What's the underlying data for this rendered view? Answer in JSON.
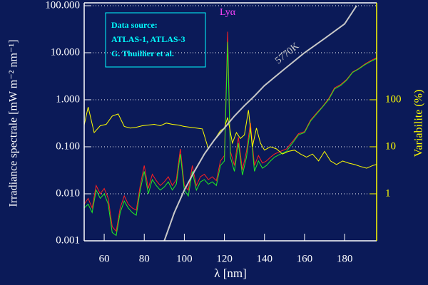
{
  "chart_data": {
    "type": "line",
    "xlabel": "λ [nm]",
    "ylabel": "Irradiance spectrale [mW m⁻² nm⁻¹]",
    "y2label": "Variabilite (%)",
    "xlim": [
      50,
      196
    ],
    "ylim": [
      0.001,
      100
    ],
    "y2lim": [
      0.1,
      10000
    ],
    "yscale": "log",
    "y2scale": "log",
    "xticks": [
      60,
      80,
      100,
      120,
      140,
      160,
      180
    ],
    "yticks": [
      {
        "value": 0.001,
        "label": "0.001"
      },
      {
        "value": 0.01,
        "label": "0.010"
      },
      {
        "value": 0.1,
        "label": "0.100"
      },
      {
        "value": 1,
        "label": "1.000"
      },
      {
        "value": 10,
        "label": "10.000"
      },
      {
        "value": 100,
        "label": "100.000"
      }
    ],
    "y2ticks": [
      1,
      10,
      100
    ],
    "grid": true,
    "annotations": {
      "line_peak": "Lyα",
      "source": [
        "Data source:",
        "ATLAS-1, ATLAS-3",
        "G. Thuillier et al."
      ]
    },
    "series": [
      {
        "color": "#ff2020",
        "x": [
          50,
          52,
          54,
          56,
          58,
          60,
          62,
          64,
          66,
          68,
          70,
          72,
          74,
          76,
          78,
          80,
          82,
          84,
          86,
          88,
          90,
          92,
          94,
          96,
          98,
          100,
          102,
          104,
          106,
          108,
          110,
          112,
          114,
          116,
          118,
          120,
          121.6,
          123,
          125,
          127,
          129,
          131,
          133,
          135,
          137,
          139,
          141,
          143,
          145,
          148,
          151,
          154,
          157,
          160,
          163,
          166,
          169,
          172,
          175,
          178,
          181,
          184,
          187,
          190,
          193,
          196
        ],
        "values": [
          0.006,
          0.008,
          0.005,
          0.015,
          0.01,
          0.013,
          0.008,
          0.002,
          0.0016,
          0.005,
          0.009,
          0.006,
          0.005,
          0.0045,
          0.015,
          0.04,
          0.013,
          0.026,
          0.019,
          0.015,
          0.018,
          0.023,
          0.015,
          0.02,
          0.09,
          0.015,
          0.012,
          0.04,
          0.015,
          0.023,
          0.026,
          0.02,
          0.023,
          0.019,
          0.05,
          0.065,
          28,
          0.08,
          0.04,
          0.16,
          0.032,
          0.08,
          0.32,
          0.04,
          0.065,
          0.045,
          0.05,
          0.06,
          0.07,
          0.08,
          0.09,
          0.13,
          0.19,
          0.21,
          0.37,
          0.52,
          0.72,
          1.05,
          1.8,
          2.1,
          2.7,
          3.9,
          4.6,
          5.7,
          6.8,
          7.8
        ]
      },
      {
        "color": "#22ee22",
        "x": [
          50,
          52,
          54,
          56,
          58,
          60,
          62,
          64,
          66,
          68,
          70,
          72,
          74,
          76,
          78,
          80,
          82,
          84,
          86,
          88,
          90,
          92,
          94,
          96,
          98,
          100,
          102,
          104,
          106,
          108,
          110,
          112,
          114,
          116,
          118,
          120,
          121.6,
          123,
          125,
          127,
          129,
          131,
          133,
          135,
          137,
          139,
          141,
          143,
          145,
          148,
          151,
          154,
          157,
          160,
          163,
          166,
          169,
          172,
          175,
          178,
          181,
          184,
          187,
          190,
          193,
          196
        ],
        "values": [
          0.005,
          0.006,
          0.004,
          0.012,
          0.008,
          0.01,
          0.006,
          0.0015,
          0.0013,
          0.004,
          0.007,
          0.005,
          0.004,
          0.0035,
          0.012,
          0.03,
          0.01,
          0.02,
          0.015,
          0.012,
          0.014,
          0.018,
          0.012,
          0.016,
          0.07,
          0.012,
          0.009,
          0.03,
          0.012,
          0.018,
          0.02,
          0.016,
          0.018,
          0.015,
          0.04,
          0.05,
          17,
          0.06,
          0.03,
          0.12,
          0.025,
          0.06,
          0.25,
          0.03,
          0.05,
          0.035,
          0.04,
          0.05,
          0.06,
          0.07,
          0.08,
          0.12,
          0.18,
          0.2,
          0.35,
          0.5,
          0.7,
          1.0,
          1.7,
          2.0,
          2.6,
          3.8,
          4.5,
          5.5,
          6.5,
          7.5
        ]
      },
      {
        "color": "#ffff00",
        "axis": "y2",
        "x": [
          50,
          52,
          55,
          58,
          61,
          64,
          67,
          70,
          73,
          76,
          79,
          82,
          85,
          88,
          91,
          94,
          97,
          100,
          103,
          106,
          109,
          112,
          115,
          118,
          120,
          121.6,
          124,
          126,
          128,
          130,
          132,
          134,
          136,
          138,
          140,
          143,
          146,
          149,
          152,
          155,
          158,
          161,
          164,
          167,
          170,
          173,
          176,
          179,
          182,
          185,
          188,
          191,
          194,
          196
        ],
        "values": [
          29,
          70,
          20,
          28,
          30,
          45,
          50,
          27,
          25,
          26,
          28,
          29,
          30,
          28,
          32,
          30,
          29,
          27,
          26,
          25,
          24,
          9,
          14,
          22,
          25,
          42,
          12,
          20,
          15,
          18,
          60,
          10,
          25,
          12,
          8.5,
          10,
          9,
          7,
          8,
          8.5,
          7,
          6,
          7,
          5,
          8,
          5,
          4.2,
          5,
          4.5,
          4.2,
          3.8,
          3.5,
          4,
          4.2
        ]
      },
      {
        "name": "5770K",
        "color": "#c8c8c8",
        "x": [
          90,
          95,
          100,
          105,
          110,
          115,
          120,
          125,
          130,
          135,
          140,
          150,
          160,
          170,
          180,
          186
        ],
        "values": [
          0.001,
          0.004,
          0.012,
          0.03,
          0.07,
          0.14,
          0.25,
          0.45,
          0.75,
          1.2,
          2,
          4.5,
          10,
          20,
          41,
          100
        ]
      }
    ]
  }
}
